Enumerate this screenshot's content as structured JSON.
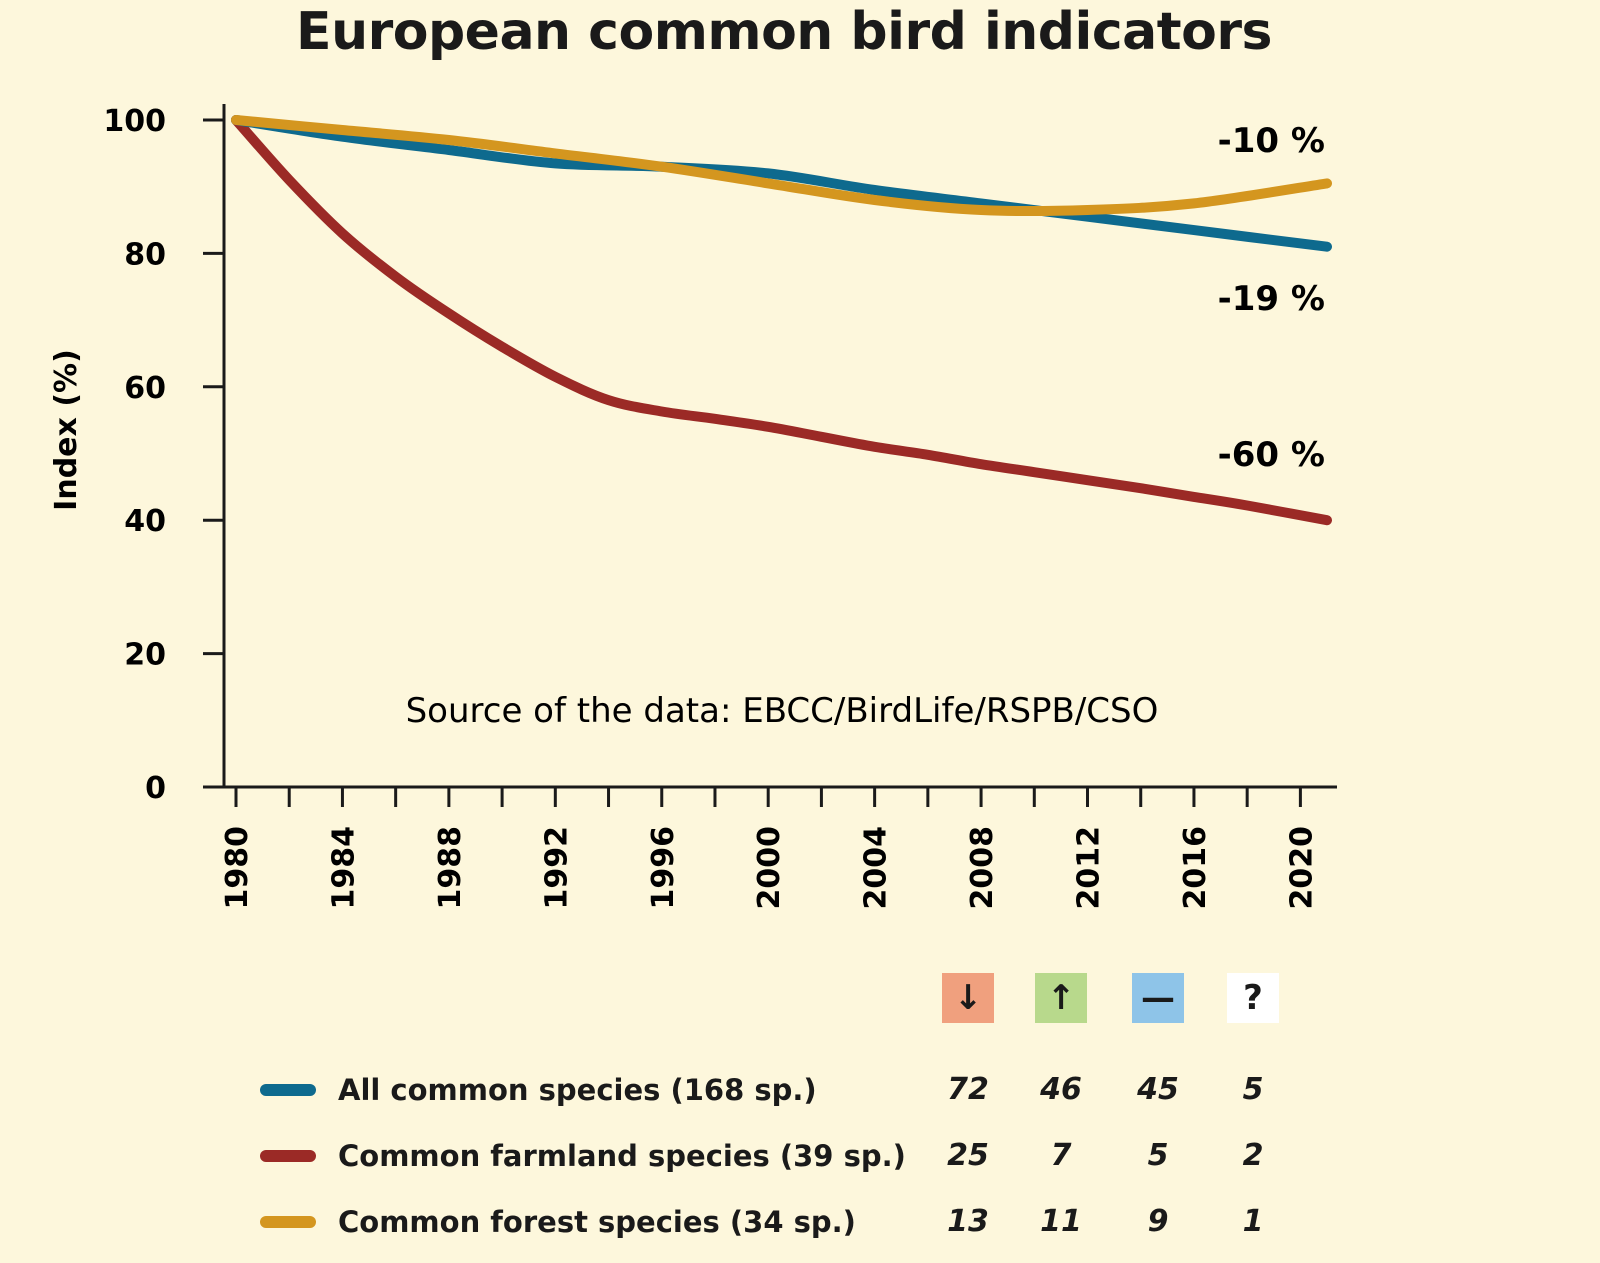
{
  "chart_data": {
    "type": "line",
    "title": "European common bird indicators",
    "ylabel": "Index (%)",
    "xlabel": "",
    "xlim": [
      1980,
      2021
    ],
    "ylim": [
      0,
      100
    ],
    "yticks": [
      0,
      20,
      40,
      60,
      80,
      100
    ],
    "xtick_labels": [
      1980,
      1984,
      1988,
      1992,
      1996,
      2000,
      2004,
      2008,
      2012,
      2016,
      2020
    ],
    "xminor_step": 2,
    "source": "Source of the data: EBCC/BirdLife/RSPB/CSO",
    "series": [
      {
        "name": "All common species (168 sp.)",
        "color": "#0e6a8e",
        "end_label": "-19 %",
        "x": [
          1980,
          1984,
          1988,
          1992,
          1996,
          2000,
          2004,
          2008,
          2012,
          2016,
          2021
        ],
        "values": [
          100,
          97.5,
          95.5,
          93.5,
          93,
          92,
          89.5,
          87.5,
          85.5,
          83.5,
          81
        ]
      },
      {
        "name": "Common farmland species (39 sp.)",
        "color": "#9b2a26",
        "end_label": "-60 %",
        "x": [
          1980,
          1982,
          1984,
          1986,
          1988,
          1990,
          1992,
          1994,
          1996,
          1998,
          2000,
          2002,
          2004,
          2006,
          2008,
          2010,
          2012,
          2014,
          2016,
          2018,
          2021
        ],
        "values": [
          100,
          91,
          83,
          76.5,
          71,
          66,
          61.5,
          58,
          56.3,
          55.2,
          54,
          52.5,
          51,
          49.8,
          48.4,
          47.2,
          46,
          44.8,
          43.5,
          42.2,
          40
        ]
      },
      {
        "name": "Common forest species (34 sp.)",
        "color": "#d4961f",
        "end_label": "-10 %",
        "x": [
          1980,
          1984,
          1988,
          1992,
          1996,
          2000,
          2004,
          2008,
          2012,
          2016,
          2021
        ],
        "values": [
          100,
          98.5,
          97,
          95,
          93,
          90.5,
          88,
          86.5,
          86.5,
          87.5,
          90.5
        ]
      }
    ]
  },
  "legend": {
    "trend_symbols": [
      "↓",
      "↑",
      "—",
      "?"
    ],
    "trend_colors": [
      "#f0a07e",
      "#b8d98c",
      "#8ec4e8",
      "#ffffff"
    ],
    "rows": [
      {
        "label": "All common species (168 sp.)",
        "counts": [
          "72",
          "46",
          "45",
          "5"
        ]
      },
      {
        "label": "Common farmland species (39 sp.)",
        "counts": [
          "25",
          "7",
          "5",
          "2"
        ]
      },
      {
        "label": "Common forest species (34 sp.)",
        "counts": [
          "13",
          "11",
          "9",
          "1"
        ]
      }
    ]
  }
}
